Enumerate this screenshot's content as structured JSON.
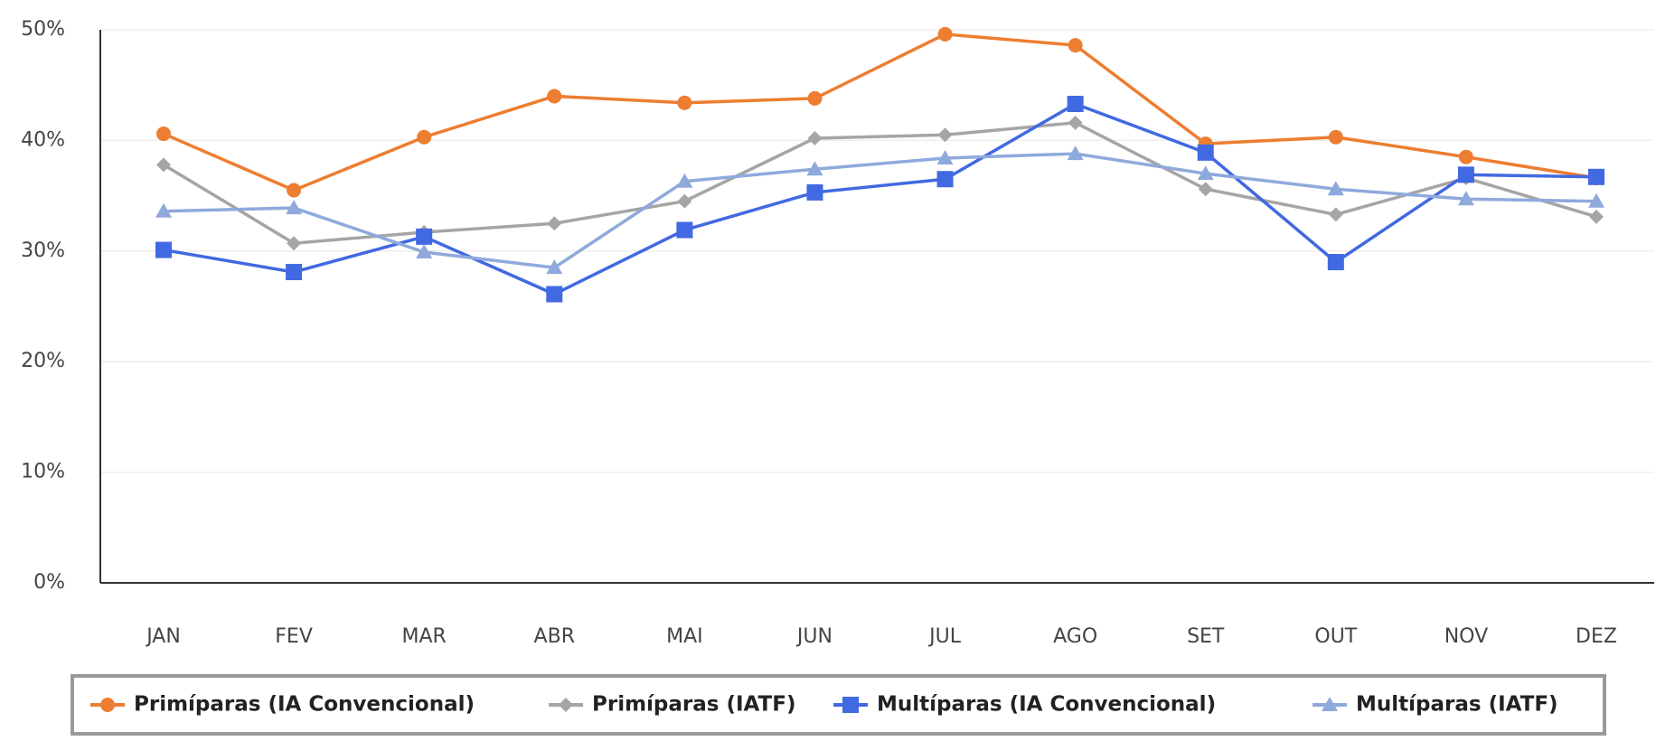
{
  "chart_data": {
    "type": "line",
    "categories": [
      "JAN",
      "FEV",
      "MAR",
      "ABR",
      "MAI",
      "JUN",
      "JUL",
      "AGO",
      "SET",
      "OUT",
      "NOV",
      "DEZ"
    ],
    "series": [
      {
        "name": "Primíparas (IA Convencional)",
        "color": "#ed7d31",
        "marker": "circle",
        "values": [
          40.6,
          35.5,
          40.3,
          44.0,
          43.4,
          43.8,
          49.6,
          48.6,
          39.7,
          40.3,
          38.5,
          36.6
        ]
      },
      {
        "name": "Primíparas (IATF)",
        "color": "#a5a5a5",
        "marker": "diamond",
        "values": [
          37.8,
          30.7,
          31.7,
          32.5,
          34.5,
          40.2,
          40.5,
          41.6,
          35.6,
          33.3,
          36.6,
          33.1
        ]
      },
      {
        "name": "Multíparas (IA Convencional)",
        "color": "#4169e1",
        "marker": "square",
        "values": [
          30.1,
          28.1,
          31.3,
          26.1,
          31.9,
          35.3,
          36.5,
          43.3,
          38.9,
          29.0,
          36.9,
          36.7
        ]
      },
      {
        "name": "Multíparas (IATF)",
        "color": "#8fa9dc",
        "marker": "triangle",
        "values": [
          33.6,
          33.9,
          29.9,
          28.5,
          36.3,
          37.4,
          38.4,
          38.8,
          37.0,
          35.6,
          34.7,
          34.5
        ]
      }
    ],
    "ylim": [
      0,
      50
    ],
    "yticks": [
      {
        "value": 0,
        "label": "0%"
      },
      {
        "value": 10,
        "label": "10%"
      },
      {
        "value": 20,
        "label": "20%"
      },
      {
        "value": 30,
        "label": "30%"
      },
      {
        "value": 40,
        "label": "40%"
      },
      {
        "value": 50,
        "label": "50%"
      }
    ],
    "grid": true,
    "legend": "bottom"
  }
}
